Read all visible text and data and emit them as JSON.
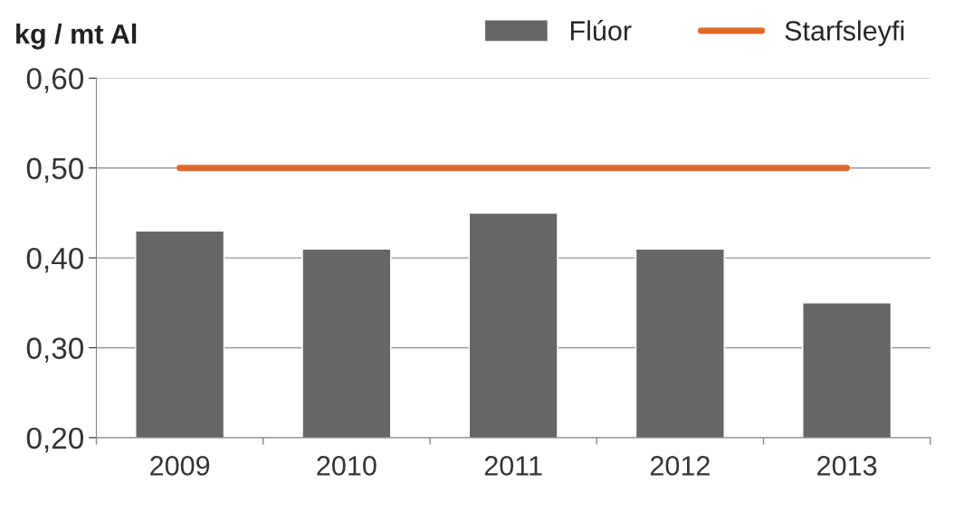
{
  "chart_data": {
    "type": "bar",
    "ylabel": "kg / mt Al",
    "categories": [
      "2009",
      "2010",
      "2011",
      "2012",
      "2013"
    ],
    "series": [
      {
        "name": "Flúor",
        "color": "#666666",
        "values": [
          0.43,
          0.41,
          0.45,
          0.41,
          0.35
        ]
      },
      {
        "name": "Starfsleyfi",
        "type": "line",
        "color": "#e0692a",
        "values": [
          0.5,
          0.5,
          0.5,
          0.5,
          0.5
        ]
      }
    ],
    "ylim": [
      0.2,
      0.6
    ],
    "yticks": [
      {
        "value": 0.2,
        "label": "0,20"
      },
      {
        "value": 0.3,
        "label": "0,30"
      },
      {
        "value": 0.4,
        "label": "0,40"
      },
      {
        "value": 0.5,
        "label": "0,50"
      },
      {
        "value": 0.6,
        "label": "0,60"
      }
    ],
    "grid": "y",
    "legend": "top right",
    "marker": "none",
    "line_style": "solid"
  }
}
